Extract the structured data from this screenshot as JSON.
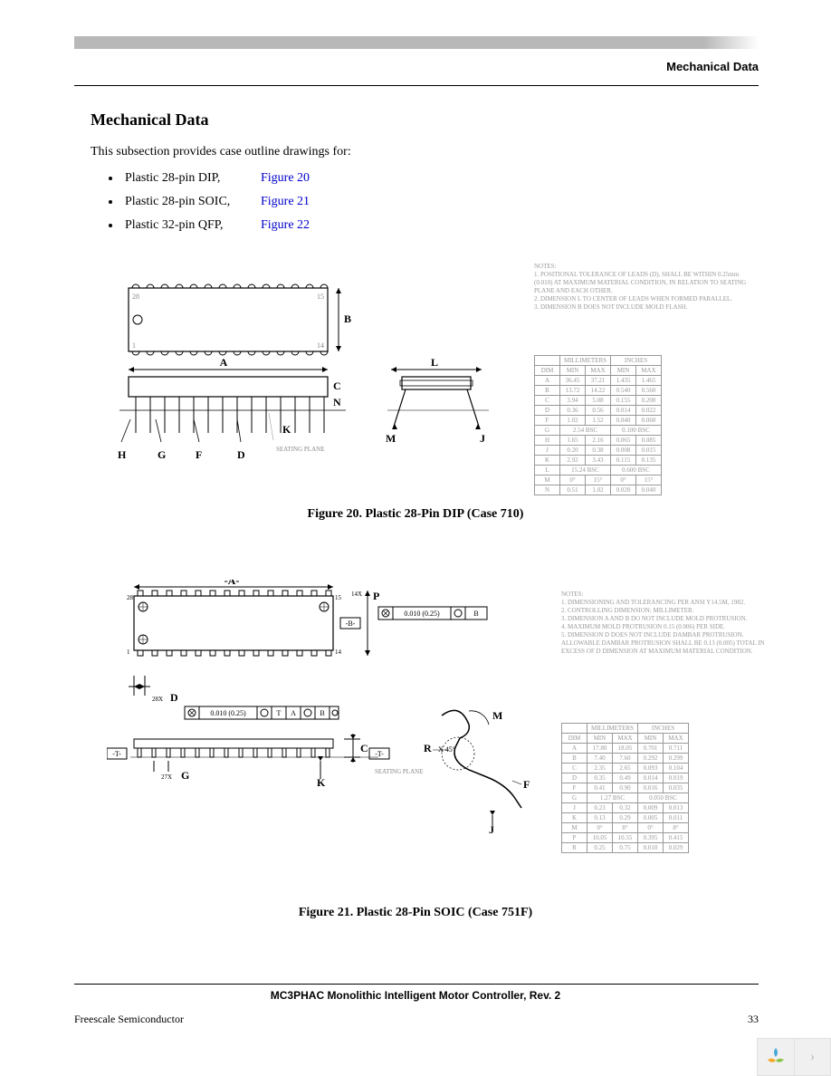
{
  "header": {
    "right_label": "Mechanical Data"
  },
  "section": {
    "title": "Mechanical Data",
    "intro": "This subsection provides case outline drawings for:",
    "bullets": [
      {
        "label": "Plastic 28-pin DIP,",
        "link": "Figure 20"
      },
      {
        "label": "Plastic 28-pin SOIC,",
        "link": "Figure 21"
      },
      {
        "label": "Plastic 32-pin QFP,",
        "link": "Figure 22"
      }
    ]
  },
  "figure20": {
    "caption": "Figure 20. Plastic 28-Pin DIP (Case 710)",
    "notes_title": "NOTES:",
    "notes": [
      "1. POSITIONAL TOLERANCE OF LEADS (D), SHALL BE WITHIN 0.25mm (0.010) AT MAXIMUM MATERIAL CONDITION, IN RELATION TO SEATING PLANE AND EACH OTHER.",
      "2. DIMENSION L TO CENTER OF LEADS WHEN FORMED PARALLEL.",
      "3. DIMENSION B DOES NOT INCLUDE MOLD FLASH."
    ],
    "table": {
      "headers": [
        "DIM",
        "MIN",
        "MAX",
        "MIN",
        "MAX"
      ],
      "header_groups": [
        "",
        "MILLIMETERS",
        "INCHES"
      ],
      "rows": [
        [
          "A",
          "36.45",
          "37.21",
          "1.435",
          "1.465"
        ],
        [
          "B",
          "13.72",
          "14.22",
          "0.540",
          "0.560"
        ],
        [
          "C",
          "3.94",
          "5.08",
          "0.155",
          "0.200"
        ],
        [
          "D",
          "0.36",
          "0.56",
          "0.014",
          "0.022"
        ],
        [
          "F",
          "1.02",
          "1.52",
          "0.040",
          "0.060"
        ],
        [
          "G",
          "2.54 BSC",
          "",
          "0.100 BSC",
          ""
        ],
        [
          "H",
          "1.65",
          "2.16",
          "0.065",
          "0.085"
        ],
        [
          "J",
          "0.20",
          "0.38",
          "0.008",
          "0.015"
        ],
        [
          "K",
          "2.92",
          "3.43",
          "0.115",
          "0.135"
        ],
        [
          "L",
          "15.24 BSC",
          "",
          "0.600 BSC",
          ""
        ],
        [
          "M",
          "0°",
          "15°",
          "0°",
          "15°"
        ],
        [
          "N",
          "0.51",
          "1.02",
          "0.020",
          "0.040"
        ]
      ]
    },
    "drawing": {
      "pin1": "1",
      "pin14": "14",
      "pin15": "15",
      "pin28": "28",
      "labels": {
        "A": "A",
        "B": "B",
        "C": "C",
        "D": "D",
        "F": "F",
        "G": "G",
        "H": "H",
        "J": "J",
        "K": "K",
        "L": "L",
        "M": "M",
        "N": "N"
      },
      "seating_plane": "SEATING PLANE"
    }
  },
  "figure21": {
    "caption": "Figure 21. Plastic 28-Pin SOIC (Case 751F)",
    "notes_title": "NOTES:",
    "notes": [
      "1. DIMENSIONING AND TOLERANCING PER ANSI Y14.5M, 1982.",
      "2. CONTROLLING DIMENSION: MILLIMETER.",
      "3. DIMENSION A AND B DO NOT INCLUDE MOLD PROTRUSION.",
      "4. MAXIMUM MOLD PROTRUSION 0.15 (0.006) PER SIDE.",
      "5. DIMENSION D DOES NOT INCLUDE DAMBAR PROTRUSION. ALLOWABLE DAMBAR PROTRUSION SHALL BE 0.13 (0.005) TOTAL IN EXCESS OF D DIMENSION AT MAXIMUM MATERIAL CONDITION."
    ],
    "table": {
      "headers": [
        "DIM",
        "MIN",
        "MAX",
        "MIN",
        "MAX"
      ],
      "header_groups": [
        "",
        "MILLIMETERS",
        "INCHES"
      ],
      "rows": [
        [
          "A",
          "17.80",
          "18.05",
          "0.701",
          "0.711"
        ],
        [
          "B",
          "7.40",
          "7.60",
          "0.292",
          "0.299"
        ],
        [
          "C",
          "2.35",
          "2.65",
          "0.093",
          "0.104"
        ],
        [
          "D",
          "0.35",
          "0.49",
          "0.014",
          "0.019"
        ],
        [
          "F",
          "0.41",
          "0.90",
          "0.016",
          "0.035"
        ],
        [
          "G",
          "1.27 BSC",
          "",
          "0.050 BSC",
          ""
        ],
        [
          "J",
          "0.23",
          "0.32",
          "0.009",
          "0.013"
        ],
        [
          "K",
          "0.13",
          "0.29",
          "0.005",
          "0.011"
        ],
        [
          "M",
          "0°",
          "8°",
          "0°",
          "8°"
        ],
        [
          "P",
          "10.05",
          "10.55",
          "0.395",
          "0.415"
        ],
        [
          "R",
          "0.25",
          "0.75",
          "0.010",
          "0.029"
        ]
      ]
    },
    "drawing": {
      "pin1": "1",
      "pin14": "14",
      "pin15": "15",
      "pin28": "28",
      "tol1": "0.010 (0.25)",
      "tol2": "0.010 (0.25)",
      "mult_d": "28X",
      "mult_g": "27X",
      "mult_p": "14X",
      "t1": "T",
      "a1": "A",
      "b1": "B",
      "r45": "X 45°",
      "labels": {
        "A": "-A-",
        "B": "-B-",
        "C": "C",
        "D": "D",
        "F": "F",
        "G": "G",
        "J": "J",
        "K": "K",
        "M": "M",
        "P": "P",
        "R": "R",
        "T": "-T-"
      },
      "seating_plane": "SEATING PLANE"
    }
  },
  "footer": {
    "doc_title": "MC3PHAC Monolithic Intelligent Motor Controller, Rev. 2",
    "left": "Freescale Semiconductor",
    "page": "33"
  },
  "colors": {
    "link": "#0000cc",
    "text": "#000000",
    "faded": "#999999",
    "header_bar": "#b8b8b8",
    "logo_blue": "#4aa8d8",
    "logo_orange": "#f5a623",
    "logo_green": "#8bc34a"
  }
}
